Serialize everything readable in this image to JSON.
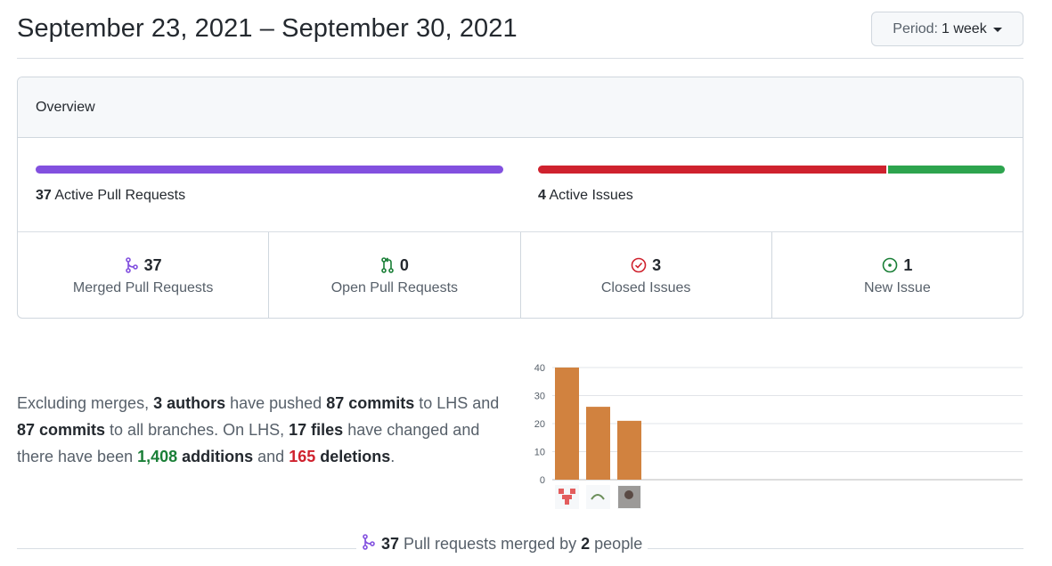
{
  "header": {
    "date_range": "September 23, 2021 – September 30, 2021",
    "period_label": "Period:",
    "period_value": "1 week"
  },
  "overview": {
    "title": "Overview",
    "pull_requests": {
      "count": "37",
      "label": "Active Pull Requests",
      "color": "#8250df"
    },
    "issues": {
      "count": "4",
      "label": "Active Issues",
      "closed_color": "#cf222e",
      "open_color": "#2da44e",
      "closed_count": 3,
      "open_count": 1
    },
    "stats": [
      {
        "icon": "git-merge-icon",
        "count": "37",
        "label": "Merged Pull Requests",
        "color": "#8250df"
      },
      {
        "icon": "git-pull-request-icon",
        "count": "0",
        "label": "Open Pull Requests",
        "color": "#1a7f37"
      },
      {
        "icon": "issue-closed-icon",
        "count": "3",
        "label": "Closed Issues",
        "color": "#cf222e"
      },
      {
        "icon": "issue-opened-icon",
        "count": "1",
        "label": "New Issue",
        "color": "#1a7f37"
      }
    ]
  },
  "summary": {
    "p1": "Excluding merges, ",
    "authors": "3 authors",
    "p2": " have pushed ",
    "commits1": "87 commits",
    "p3": " to LHS and ",
    "commits2": "87 commits",
    "p4": " to all branches. On LHS, ",
    "files": "17 files",
    "p5": " have changed and there have been ",
    "additions_num": "1,408",
    "additions_word": " additions",
    "p6": " and ",
    "deletions_num": "165",
    "deletions_word": " deletions",
    "p7": "."
  },
  "chart_data": {
    "type": "bar",
    "categories": [
      "author-1",
      "author-2",
      "author-3"
    ],
    "values": [
      40,
      26,
      21
    ],
    "ylim": [
      0,
      40
    ],
    "yticks": [
      "0",
      "10",
      "20",
      "30",
      "40"
    ],
    "grid": true,
    "bar_color": "#d1823f"
  },
  "footer": {
    "icon": "git-merge-icon",
    "count": "37",
    "text1": " Pull requests merged by ",
    "people": "2",
    "text2": " people"
  }
}
